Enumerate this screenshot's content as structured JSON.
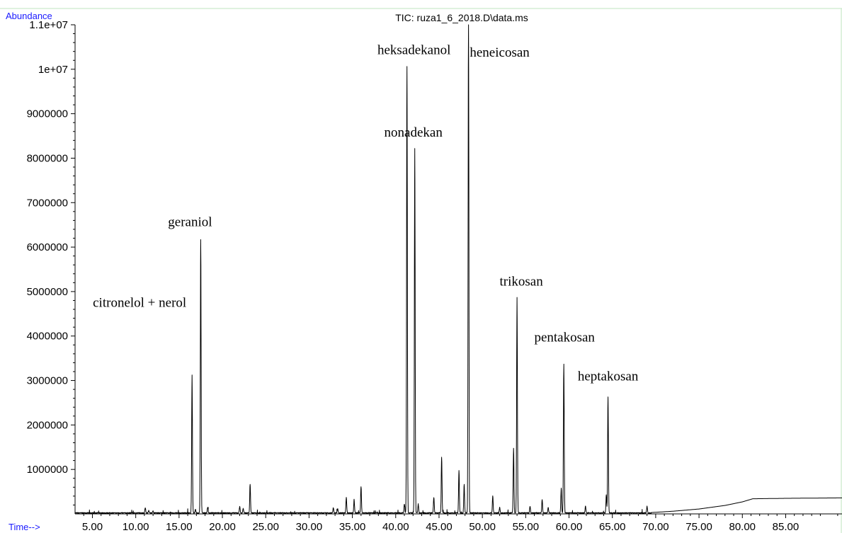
{
  "chart_data": {
    "type": "line",
    "title": "TIC: ruza1_6_2018.D\\data.ms",
    "ylabel": "Abundance",
    "xlabel": "Time-->",
    "xlim": [
      3.0,
      91.5
    ],
    "ylim": [
      0,
      11000000
    ],
    "x_ticks": [
      5,
      10,
      15,
      20,
      25,
      30,
      35,
      40,
      45,
      50,
      55,
      60,
      65,
      70,
      75,
      80,
      85
    ],
    "x_tick_labels": [
      "5.00",
      "10.00",
      "15.00",
      "20.00",
      "25.00",
      "30.00",
      "35.00",
      "40.00",
      "45.00",
      "50.00",
      "55.00",
      "60.00",
      "65.00",
      "70.00",
      "75.00",
      "80.00",
      "85.00"
    ],
    "y_ticks": [
      1000000,
      2000000,
      3000000,
      4000000,
      5000000,
      6000000,
      7000000,
      8000000,
      9000000,
      10000000,
      11000000
    ],
    "y_tick_labels": [
      "1000000",
      "2000000",
      "3000000",
      "4000000",
      "5000000",
      "6000000",
      "7000000",
      "8000000",
      "9000000",
      "1e+07",
      "1.1e+07"
    ],
    "peaks": [
      {
        "t": 11.1,
        "a": 120000
      },
      {
        "t": 11.5,
        "a": 60000
      },
      {
        "t": 12.0,
        "a": 40000
      },
      {
        "t": 16.5,
        "a": 3100000
      },
      {
        "t": 16.9,
        "a": 80000
      },
      {
        "t": 17.5,
        "a": 6150000
      },
      {
        "t": 18.3,
        "a": 120000
      },
      {
        "t": 22.0,
        "a": 150000
      },
      {
        "t": 22.4,
        "a": 100000
      },
      {
        "t": 23.2,
        "a": 650000
      },
      {
        "t": 32.8,
        "a": 120000
      },
      {
        "t": 33.3,
        "a": 100000
      },
      {
        "t": 34.3,
        "a": 350000
      },
      {
        "t": 35.2,
        "a": 300000
      },
      {
        "t": 36.0,
        "a": 600000
      },
      {
        "t": 41.0,
        "a": 200000
      },
      {
        "t": 41.3,
        "a": 10050000
      },
      {
        "t": 42.2,
        "a": 8200000
      },
      {
        "t": 42.6,
        "a": 200000
      },
      {
        "t": 44.4,
        "a": 350000
      },
      {
        "t": 45.3,
        "a": 1250000
      },
      {
        "t": 47.3,
        "a": 950000
      },
      {
        "t": 47.9,
        "a": 650000
      },
      {
        "t": 48.4,
        "a": 11050000
      },
      {
        "t": 51.2,
        "a": 380000
      },
      {
        "t": 52.0,
        "a": 120000
      },
      {
        "t": 53.6,
        "a": 1450000
      },
      {
        "t": 54.0,
        "a": 4850000
      },
      {
        "t": 55.5,
        "a": 150000
      },
      {
        "t": 56.9,
        "a": 300000
      },
      {
        "t": 57.6,
        "a": 120000
      },
      {
        "t": 59.1,
        "a": 550000
      },
      {
        "t": 59.4,
        "a": 3350000
      },
      {
        "t": 61.9,
        "a": 150000
      },
      {
        "t": 64.3,
        "a": 400000
      },
      {
        "t": 64.5,
        "a": 2600000
      },
      {
        "t": 69.0,
        "a": 150000
      }
    ],
    "baseline": [
      {
        "t": 69.5,
        "a": 30000
      },
      {
        "t": 72.0,
        "a": 60000
      },
      {
        "t": 75.0,
        "a": 110000
      },
      {
        "t": 78.0,
        "a": 190000
      },
      {
        "t": 80.0,
        "a": 270000
      },
      {
        "t": 81.2,
        "a": 340000
      },
      {
        "t": 85.0,
        "a": 350000
      },
      {
        "t": 91.5,
        "a": 360000
      }
    ],
    "annotations": [
      {
        "label": "citronelol + nerol",
        "t": 16.5,
        "a": 3100000
      },
      {
        "label": "geraniol",
        "t": 17.5,
        "a": 6150000
      },
      {
        "label": "heksadekanol",
        "t": 41.3,
        "a": 10050000
      },
      {
        "label": "nonadekan",
        "t": 42.2,
        "a": 8200000
      },
      {
        "label": "heneicosan",
        "t": 48.4,
        "a": 11050000
      },
      {
        "label": "trikosan",
        "t": 54.0,
        "a": 4850000
      },
      {
        "label": "pentakosan",
        "t": 59.4,
        "a": 3350000
      },
      {
        "label": "heptakosan",
        "t": 64.5,
        "a": 2600000
      }
    ],
    "grid": false,
    "legend": "none",
    "colors": {
      "trace": "#000000",
      "axis": "#000000",
      "frame": "#bfe6bf",
      "label_blue": "#1a1aff"
    }
  }
}
